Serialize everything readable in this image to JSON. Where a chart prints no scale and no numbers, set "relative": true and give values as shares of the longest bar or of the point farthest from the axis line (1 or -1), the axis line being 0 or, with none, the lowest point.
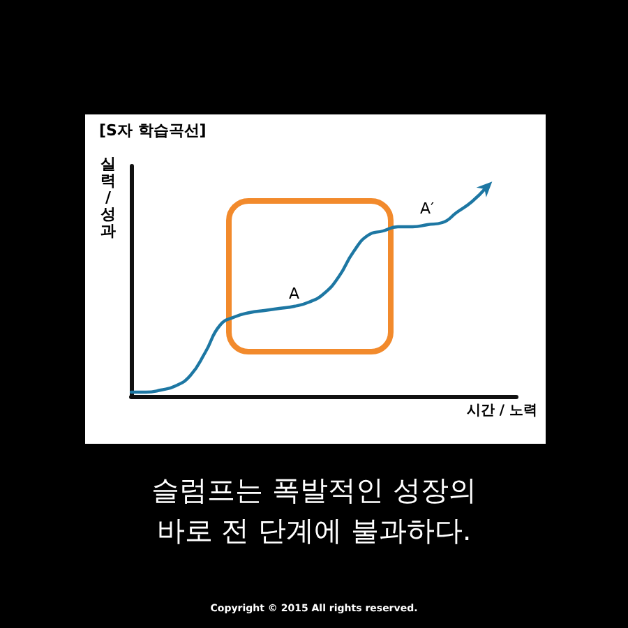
{
  "chart_data": {
    "type": "line",
    "title": "[S자 학습곡선]",
    "xlabel": "시간 / 노력",
    "ylabel": "실력 / 성과",
    "categories": [
      null,
      null,
      null,
      null,
      null,
      null,
      null,
      null,
      null,
      null,
      null,
      null,
      null,
      null,
      null,
      null,
      null,
      null,
      null,
      null,
      null,
      null,
      null,
      null,
      null,
      null,
      null
    ],
    "values": [
      0.02,
      0.02,
      0.03,
      0.05,
      0.1,
      0.21,
      0.34,
      0.38,
      0.4,
      0.41,
      0.42,
      0.43,
      0.45,
      0.49,
      0.57,
      0.69,
      0.77,
      0.79,
      0.81,
      0.81,
      0.82,
      0.83,
      0.88,
      0.93,
      1,
      null,
      null
    ],
    "color": "#1d77a3",
    "relative": true,
    "marker": "none",
    "annotations": [
      "A",
      "A′",
      "슬럼프는 폭발적인 성장의 바로 전 단계에 불과하다.",
      "Copyright © 2015 All rights reserved."
    ]
  }
}
